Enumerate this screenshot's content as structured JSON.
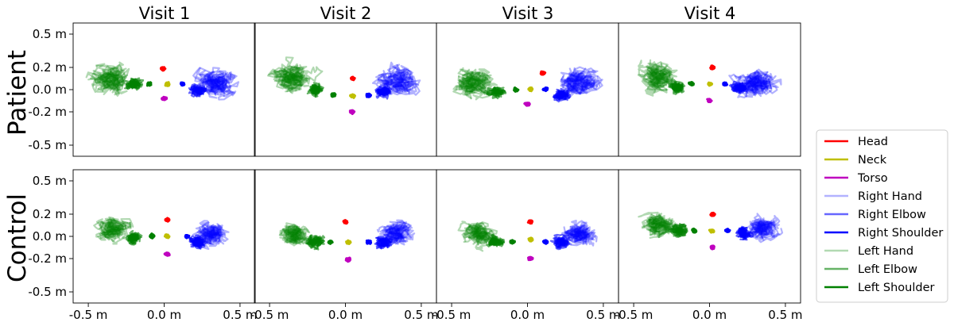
{
  "chart_data": {
    "type": "line",
    "column_titles": [
      "Visit 1",
      "Visit 2",
      "Visit 3",
      "Visit 4"
    ],
    "row_labels": [
      "Patient",
      "Control"
    ],
    "x_ticks": [
      -0.5,
      0.0,
      0.5
    ],
    "x_tick_labels": [
      "-0.5 m",
      "0.0 m",
      "0.5 m"
    ],
    "y_ticks": [
      0.5,
      0.2,
      0.0,
      -0.2,
      -0.5
    ],
    "y_tick_labels": [
      "0.5 m",
      "0.2 m",
      "0.0 m",
      "-0.2 m",
      "-0.5 m"
    ],
    "xlim": [
      -0.6,
      0.6
    ],
    "ylim": [
      -0.6,
      0.6
    ],
    "legend_position": "right",
    "series": [
      {
        "name": "Head",
        "color": "#ff0000",
        "alpha": 1.0
      },
      {
        "name": "Neck",
        "color": "#bfbf00",
        "alpha": 1.0
      },
      {
        "name": "Torso",
        "color": "#bf00bf",
        "alpha": 1.0
      },
      {
        "name": "Right Hand",
        "color": "#0000ff",
        "alpha": 0.3
      },
      {
        "name": "Right Elbow",
        "color": "#0000ff",
        "alpha": 0.6
      },
      {
        "name": "Right Shoulder",
        "color": "#0000ff",
        "alpha": 1.0
      },
      {
        "name": "Left Hand",
        "color": "#008000",
        "alpha": 0.3
      },
      {
        "name": "Left Elbow",
        "color": "#008000",
        "alpha": 0.6
      },
      {
        "name": "Left Shoulder",
        "color": "#008000",
        "alpha": 1.0
      }
    ],
    "joint_centers": {
      "Patient": [
        {
          "Head": [
            -0.01,
            0.19
          ],
          "Neck": [
            0.02,
            0.05
          ],
          "Torso": [
            0.0,
            -0.08
          ],
          "Right Shoulder": [
            0.12,
            0.05
          ],
          "Right Elbow": [
            0.22,
            0.0
          ],
          "Right Hand": [
            0.3,
            0.05
          ],
          "Left Shoulder": [
            -0.1,
            0.05
          ],
          "Left Elbow": [
            -0.2,
            0.05
          ],
          "Left Hand": [
            -0.3,
            0.08
          ]
        },
        {
          "Head": [
            0.05,
            0.1
          ],
          "Neck": [
            0.05,
            -0.06
          ],
          "Torso": [
            0.04,
            -0.2
          ],
          "Right Shoulder": [
            0.15,
            -0.05
          ],
          "Right Elbow": [
            0.25,
            -0.02
          ],
          "Right Hand": [
            0.3,
            0.05
          ],
          "Left Shoulder": [
            -0.08,
            -0.05
          ],
          "Left Elbow": [
            -0.2,
            0.0
          ],
          "Left Hand": [
            -0.32,
            0.1
          ]
        },
        {
          "Head": [
            0.1,
            0.15
          ],
          "Neck": [
            0.02,
            0.0
          ],
          "Torso": [
            0.0,
            -0.13
          ],
          "Right Shoulder": [
            0.12,
            0.0
          ],
          "Right Elbow": [
            0.22,
            -0.05
          ],
          "Right Hand": [
            0.3,
            0.05
          ],
          "Left Shoulder": [
            -0.08,
            0.0
          ],
          "Left Elbow": [
            -0.2,
            -0.03
          ],
          "Left Hand": [
            -0.32,
            0.05
          ]
        },
        {
          "Head": [
            0.02,
            0.2
          ],
          "Neck": [
            0.0,
            0.05
          ],
          "Torso": [
            0.0,
            -0.1
          ],
          "Right Shoulder": [
            0.1,
            0.05
          ],
          "Right Elbow": [
            0.2,
            0.02
          ],
          "Right Hand": [
            0.28,
            0.05
          ],
          "Left Shoulder": [
            -0.12,
            0.05
          ],
          "Left Elbow": [
            -0.22,
            0.02
          ],
          "Left Hand": [
            -0.3,
            0.08
          ]
        }
      ],
      "Control": [
        {
          "Head": [
            0.02,
            0.15
          ],
          "Neck": [
            0.02,
            0.0
          ],
          "Torso": [
            0.02,
            -0.16
          ],
          "Right Shoulder": [
            0.15,
            0.0
          ],
          "Right Elbow": [
            0.22,
            -0.05
          ],
          "Right Hand": [
            0.28,
            0.0
          ],
          "Left Shoulder": [
            -0.08,
            0.0
          ],
          "Left Elbow": [
            -0.2,
            -0.02
          ],
          "Left Hand": [
            -0.3,
            0.05
          ]
        },
        {
          "Head": [
            0.0,
            0.13
          ],
          "Neck": [
            0.02,
            -0.05
          ],
          "Torso": [
            0.02,
            -0.21
          ],
          "Right Shoulder": [
            0.15,
            -0.05
          ],
          "Right Elbow": [
            0.25,
            -0.05
          ],
          "Right Hand": [
            0.3,
            0.0
          ],
          "Left Shoulder": [
            -0.1,
            -0.05
          ],
          "Left Elbow": [
            -0.2,
            -0.05
          ],
          "Left Hand": [
            -0.3,
            0.0
          ]
        },
        {
          "Head": [
            0.02,
            0.13
          ],
          "Neck": [
            0.02,
            -0.03
          ],
          "Torso": [
            0.02,
            -0.2
          ],
          "Right Shoulder": [
            0.12,
            -0.05
          ],
          "Right Elbow": [
            0.22,
            -0.05
          ],
          "Right Hand": [
            0.3,
            0.0
          ],
          "Left Shoulder": [
            -0.1,
            -0.05
          ],
          "Left Elbow": [
            -0.2,
            -0.05
          ],
          "Left Hand": [
            -0.3,
            0.0
          ]
        },
        {
          "Head": [
            0.02,
            0.2
          ],
          "Neck": [
            0.02,
            0.05
          ],
          "Torso": [
            0.02,
            -0.1
          ],
          "Right Shoulder": [
            0.12,
            0.05
          ],
          "Right Elbow": [
            0.22,
            0.02
          ],
          "Right Hand": [
            0.3,
            0.05
          ],
          "Left Shoulder": [
            -0.1,
            0.05
          ],
          "Left Elbow": [
            -0.2,
            0.05
          ],
          "Left Hand": [
            -0.3,
            0.08
          ]
        }
      ]
    }
  }
}
